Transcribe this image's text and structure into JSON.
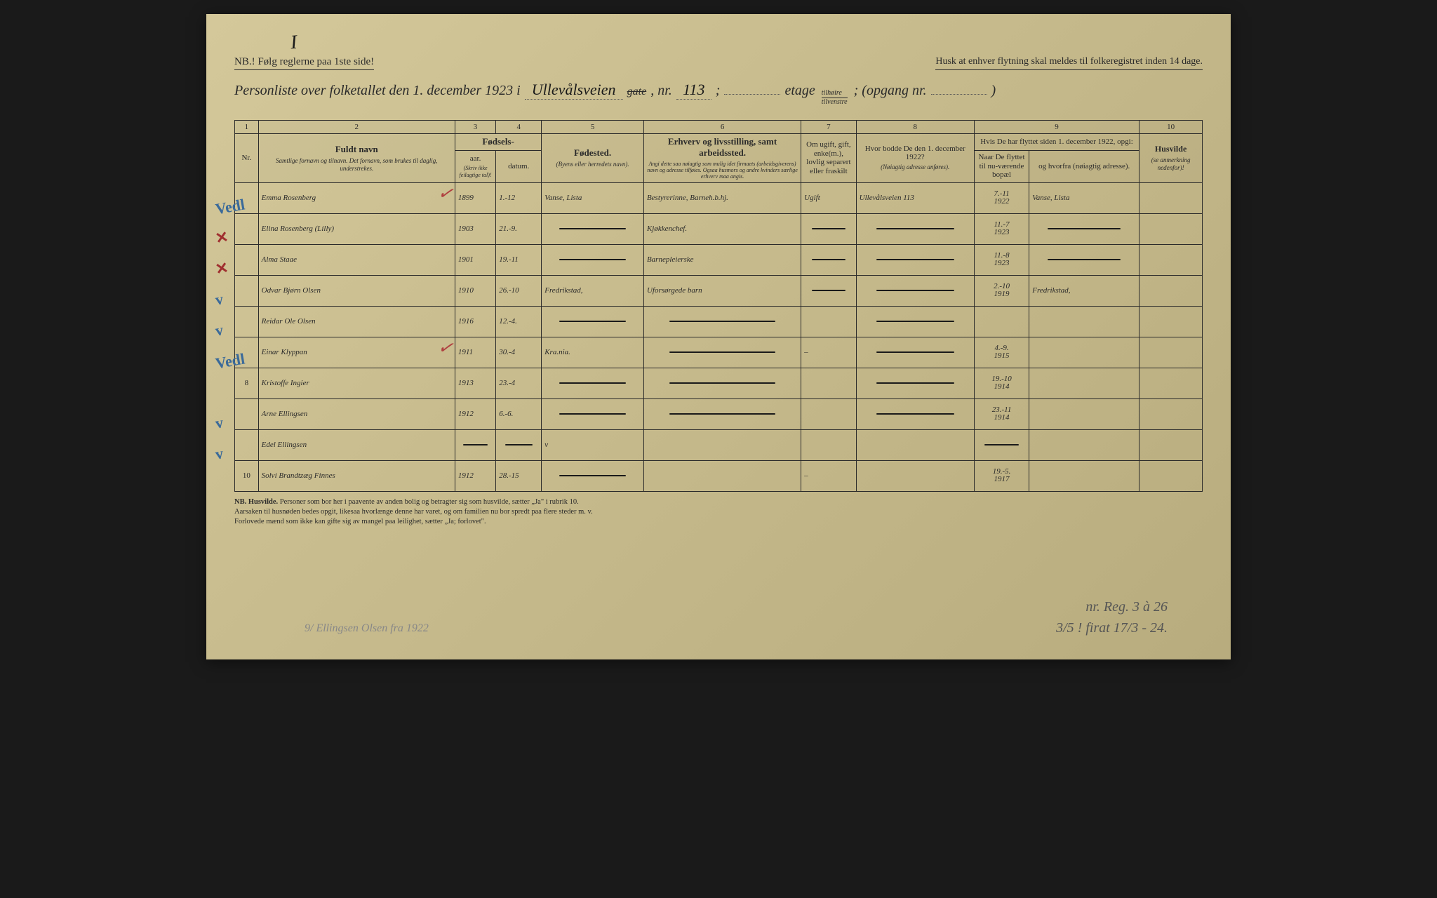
{
  "page_mark": "I",
  "top": {
    "nb": "NB.! Følg reglerne paa 1ste side!",
    "husk": "Husk at enhver flytning skal meldes til folkeregistret inden 14 dage."
  },
  "title": {
    "prefix": "Personliste over folketallet den 1. december 1923 i",
    "street": "Ullevålsveien",
    "gate_strike": "gate",
    "nr_label": ", nr.",
    "nr": "113",
    "semi": ";",
    "etage_label": "etage",
    "frac_top": "tilhøire",
    "frac_bot": "tilvenstre",
    "opgang_label": "; (opgang nr.",
    "opgang": "",
    "close": ")"
  },
  "columns": {
    "c1": "1",
    "c2": "2",
    "c3": "3",
    "c4": "4",
    "c5": "5",
    "c6": "6",
    "c7": "7",
    "c8": "8",
    "c9": "9",
    "c10": "10"
  },
  "headers": {
    "nr": "Nr.",
    "name": "Fuldt navn",
    "name_sub": "Samtlige fornavn og tilnavn. Det fornavn, som brukes til daglig, understrekes.",
    "fodsels": "Fødsels-",
    "aar": "aar.",
    "datum": "datum.",
    "aar_sub": "(Skriv ikke feilagtige tal)!",
    "fodested": "Fødested.",
    "fodested_sub": "(Byens eller herredets navn).",
    "erhverv": "Erhverv og livsstilling, samt arbeidssted.",
    "erhverv_sub": "Angi dette saa nøiagtig som mulig idet firmaets (arbeidsgiverens) navn og adresse tilføies. Ogsaa husmors og andre kvinders særlige erhverv maa angis.",
    "status": "Om ugift, gift, enke(m.), lovlig separert eller fraskilt",
    "prev_addr": "Hvor bodde De den 1. december 1922?",
    "prev_addr_sub": "(Nøiagtig adresse anføres).",
    "moved": "Hvis De har flyttet siden 1. december 1922, opgi:",
    "moved_when": "Naar De flyttet til nu-værende bopæl",
    "moved_from": "og hvorfra (nøiagtig adresse).",
    "husvilde": "Husvilde",
    "husvilde_sub": "(se anmerkning nedenfor)!"
  },
  "rows": [
    {
      "margin": "Vedl",
      "margin_color": "blue",
      "nr": "",
      "name": "Emma Rosenberg",
      "redcheck": true,
      "aar": "1899",
      "datum": "1.-12",
      "fodested": "Vanse, Lista",
      "erhverv": "Bestyrerinne, Barneh.b.hj.",
      "status": "Ugift",
      "prev": "Ullevålsveien 113",
      "when": "7.-11\n1922",
      "from": "Vanse, Lista"
    },
    {
      "margin": "✕",
      "margin_color": "red",
      "nr": "",
      "name": "Elina Rosenberg (Lilly)",
      "redcheck": false,
      "aar": "1903",
      "datum": "21.-9.",
      "fodested": "—",
      "erhverv": "Kjøkkenchef.",
      "status": "—",
      "prev": "—",
      "when": "11.-7\n1923",
      "from": "—"
    },
    {
      "margin": "✕",
      "margin_color": "red",
      "nr": "",
      "name": "Alma Staae",
      "redcheck": false,
      "aar": "1901",
      "datum": "19.-11",
      "fodested": "—",
      "erhverv": "Barnepleierske",
      "status": "—",
      "prev": "—",
      "when": "11.-8\n1923",
      "from": "—"
    },
    {
      "margin": "v",
      "margin_color": "blue",
      "nr": "",
      "name": "Odvar Bjørn Olsen",
      "redcheck": false,
      "aar": "1910",
      "datum": "26.-10",
      "fodested": "Fredrikstad,",
      "erhverv": "Uforsørgede barn",
      "status": "—",
      "prev": "—",
      "when": "2.-10\n1919",
      "from": "Fredrikstad,"
    },
    {
      "margin": "v",
      "margin_color": "blue",
      "nr": "",
      "name": "Reidar Ole Olsen",
      "redcheck": false,
      "aar": "1916",
      "datum": "12.-4.",
      "fodested": "—",
      "erhverv": "—",
      "status": "",
      "prev": "—",
      "when": "",
      "from": ""
    },
    {
      "margin": "Vedl",
      "margin_color": "blue",
      "nr": "",
      "name": "Einar Klyppan",
      "redcheck": true,
      "aar": "1911",
      "datum": "30.-4",
      "fodested": "Kra.nia.",
      "erhverv": "—",
      "status": "–",
      "prev": "—",
      "when": "4.-9.\n1915",
      "from": ""
    },
    {
      "margin": "",
      "margin_color": "",
      "nr": "8",
      "name": "Kristoffe Ingier",
      "redcheck": false,
      "aar": "1913",
      "datum": "23.-4",
      "fodested": "—",
      "erhverv": "—",
      "status": "",
      "prev": "—",
      "when": "19.-10\n1914",
      "from": ""
    },
    {
      "margin": "v",
      "margin_color": "blue",
      "nr": "",
      "name": "Arne Ellingsen",
      "redcheck": false,
      "aar": "1912",
      "datum": "6.-6.",
      "fodested": "—",
      "erhverv": "—",
      "status": "",
      "prev": "—",
      "when": "23.-11\n1914",
      "from": ""
    },
    {
      "margin": "v",
      "margin_color": "blue",
      "nr": "",
      "name": "Edel Ellingsen",
      "redcheck": false,
      "aar": "—",
      "datum": "—",
      "fodested": "v",
      "erhverv": "",
      "status": "",
      "prev": "",
      "when": "—",
      "from": ""
    },
    {
      "margin": "",
      "margin_color": "",
      "nr": "10",
      "name": "Solvi Brandtzæg Finnes",
      "redcheck": false,
      "aar": "1912",
      "datum": "28.-15",
      "fodested": "—",
      "erhverv": "",
      "status": "–",
      "prev": "",
      "when": "19.-5.\n1917",
      "from": ""
    }
  ],
  "footnote": {
    "label": "NB. Husvilde.",
    "text1": "Personer som bor her i paavente av anden bolig og betragter sig som husvilde, sætter „Ja\" i rubrik 10.",
    "text2": "Aarsaken til husnøden bedes opgit, likesaa hvorlænge denne har varet, og om familien nu bor spredt paa flere steder m. v.",
    "text3": "Forlovede mænd som ikke kan gifte sig av mangel paa leilighet, sætter „Ja; forlovet\"."
  },
  "pencil_bottom_left": "9/ Ellingsen Olsen fra 1922",
  "pencil_bottom_right_1": "nr. Reg. 3 à 26",
  "pencil_bottom_right_2": "3/5 !   firat 17/3 - 24."
}
